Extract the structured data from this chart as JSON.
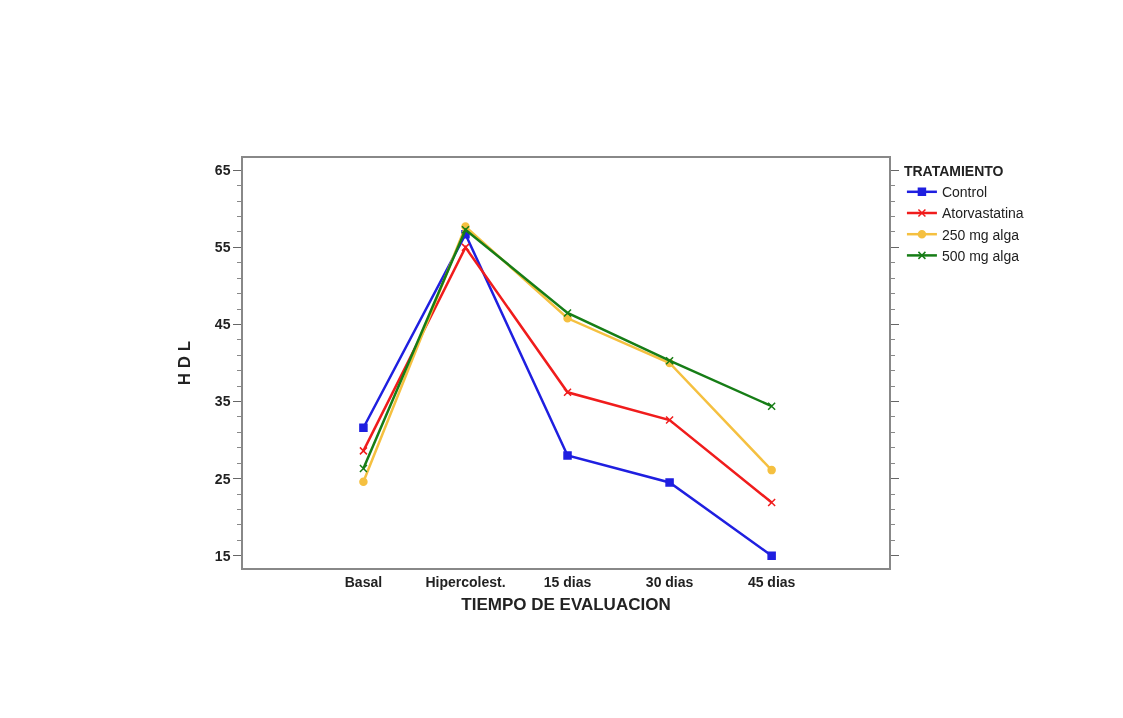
{
  "chart_data": {
    "type": "line",
    "xlabel": "TIEMPO DE EVALUACION",
    "ylabel": "H D L",
    "legend_title": "TRATAMIENTO",
    "categories": [
      "Basal",
      "Hipercolest.",
      "15 dias",
      "30 dias",
      "45 dias"
    ],
    "series": [
      {
        "name": "Control",
        "color": "#1f1fe0",
        "marker": "square",
        "values": [
          31.6,
          56.7,
          28.0,
          24.5,
          15.0
        ]
      },
      {
        "name": "Atorvastatina",
        "color": "#f01c1c",
        "marker": "cross",
        "values": [
          28.6,
          55.0,
          36.2,
          32.6,
          21.9
        ]
      },
      {
        "name": "250 mg alga",
        "color": "#f5c040",
        "marker": "circle",
        "values": [
          24.6,
          57.7,
          45.8,
          40.0,
          26.1
        ]
      },
      {
        "name": "500 mg alga",
        "color": "#167d16",
        "marker": "cross",
        "values": [
          26.3,
          57.3,
          46.5,
          40.3,
          34.4
        ]
      }
    ],
    "ylim": [
      13.4,
      66.6
    ],
    "yticks": [
      15,
      25,
      35,
      45,
      55,
      65
    ],
    "legend": "top right",
    "line_style": "solid"
  }
}
